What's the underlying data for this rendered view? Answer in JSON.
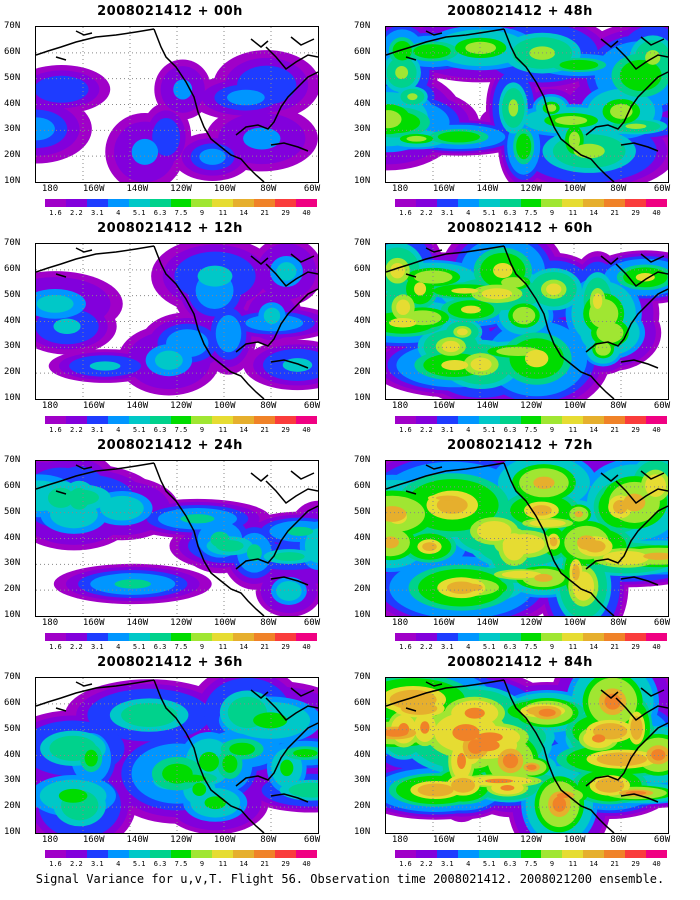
{
  "panels": [
    {
      "title": "2008021412 + 00h",
      "intensity": 1
    },
    {
      "title": "2008021412 + 48h",
      "intensity": 5
    },
    {
      "title": "2008021412 + 12h",
      "intensity": 2
    },
    {
      "title": "2008021412 + 60h",
      "intensity": 6
    },
    {
      "title": "2008021412 + 24h",
      "intensity": 3
    },
    {
      "title": "2008021412 + 72h",
      "intensity": 7
    },
    {
      "title": "2008021412 + 36h",
      "intensity": 4
    },
    {
      "title": "2008021412 + 84h",
      "intensity": 8
    }
  ],
  "lat_labels": [
    "70N",
    "60N",
    "50N",
    "40N",
    "30N",
    "20N",
    "10N"
  ],
  "lon_labels": [
    "180",
    "160W",
    "140W",
    "120W",
    "100W",
    "80W",
    "60W"
  ],
  "colorbar": {
    "labels": [
      "1.6",
      "2.2",
      "3.1",
      "4",
      "5.1",
      "6.3",
      "7.5",
      "9",
      "11",
      "14",
      "21",
      "29",
      "40"
    ],
    "colors": [
      "#a000c8",
      "#8200dc",
      "#1e3cff",
      "#0096ff",
      "#00c8c8",
      "#00d28c",
      "#00dc00",
      "#a0e632",
      "#e6dc32",
      "#e6af2d",
      "#f08228",
      "#fa3c3c",
      "#f00082"
    ]
  },
  "caption": "Signal Variance for u,v,T. Flight 56. Observation time 2008021412. 2008021200 ensemble."
}
